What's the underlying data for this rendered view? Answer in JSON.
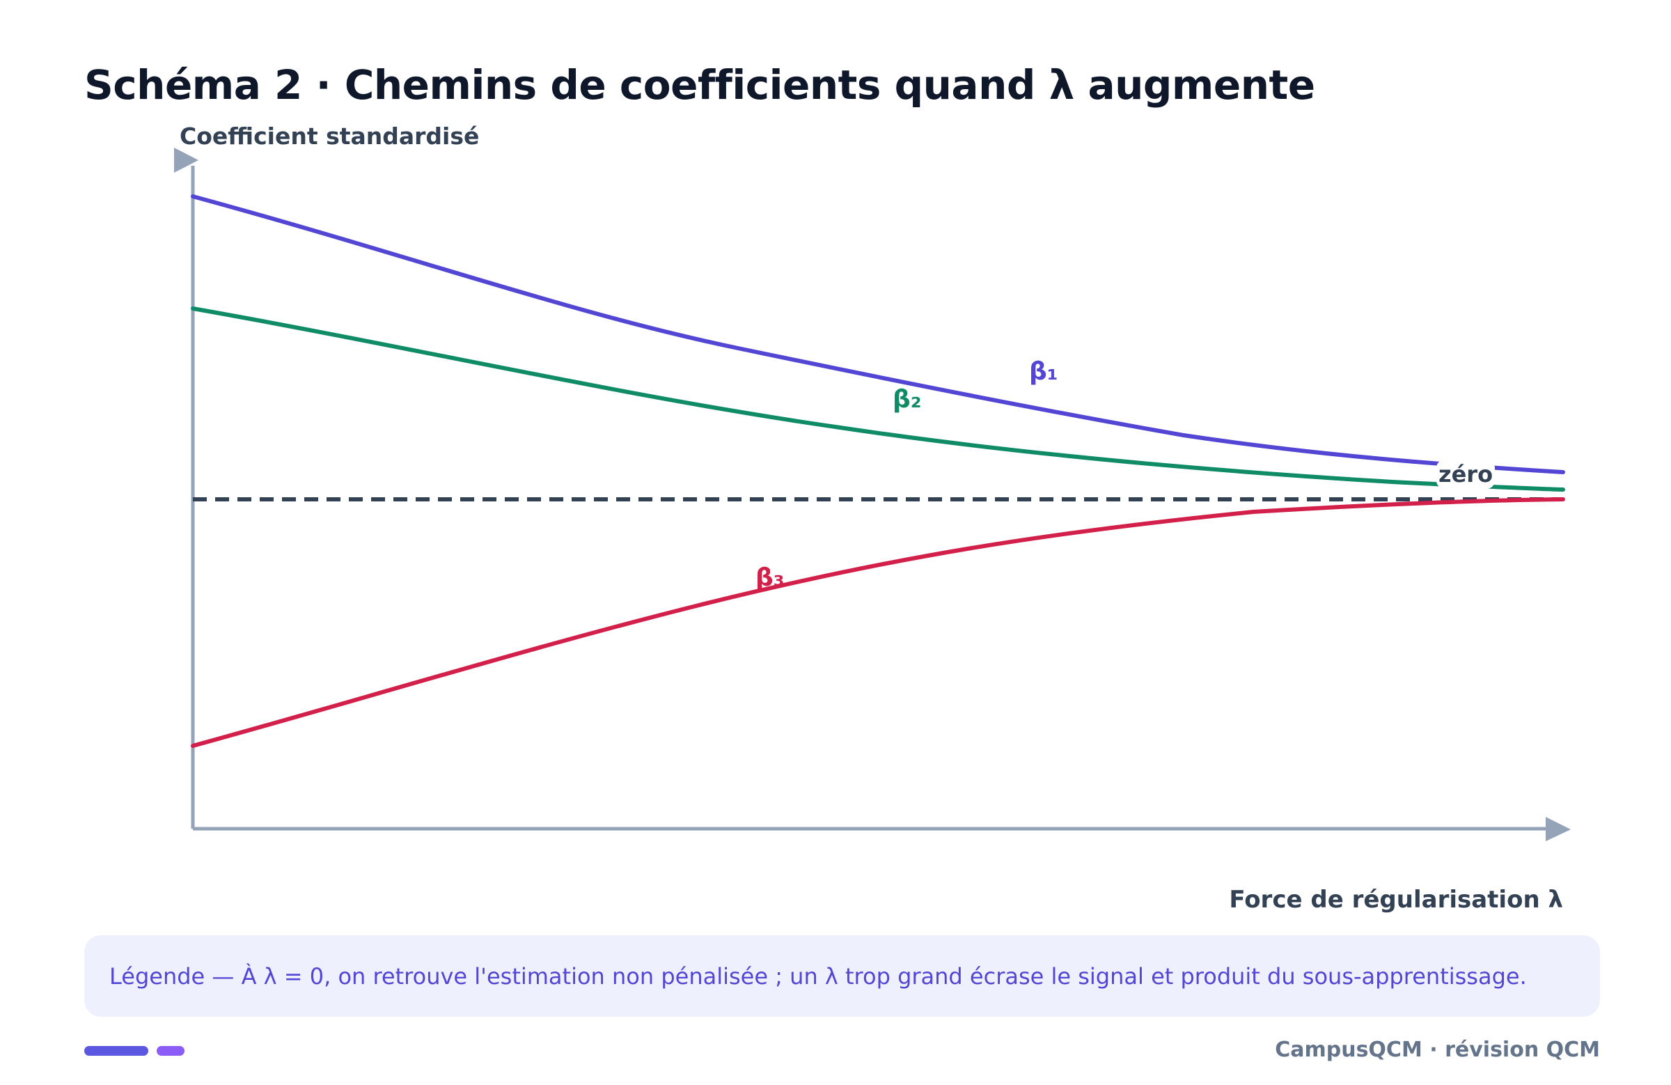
{
  "title": "Schéma 2 · Chemins de coefficients quand λ augmente",
  "axes": {
    "y_label": "Coefficient standardisé",
    "x_label": "Force de régularisation λ",
    "zero_label": "zéro"
  },
  "paths": [
    {
      "label": "β₁",
      "color": "#5346d4"
    },
    {
      "label": "β₂",
      "color": "#0f8c66"
    },
    {
      "label": "β₃",
      "color": "#d3204b"
    }
  ],
  "legend": {
    "text": "Légende — À λ = 0, on retrouve l'estimation non pénalisée ; un λ trop grand écrase le signal et produit du sous-apprentissage."
  },
  "footer": {
    "brand": "CampusQCM · révision QCM",
    "accent_colors": [
      "#5b57e0",
      "#8b5cf6"
    ]
  },
  "colors": {
    "axis": "#94a3b8",
    "zero_line": "#334155",
    "title": "#0f172a"
  }
}
